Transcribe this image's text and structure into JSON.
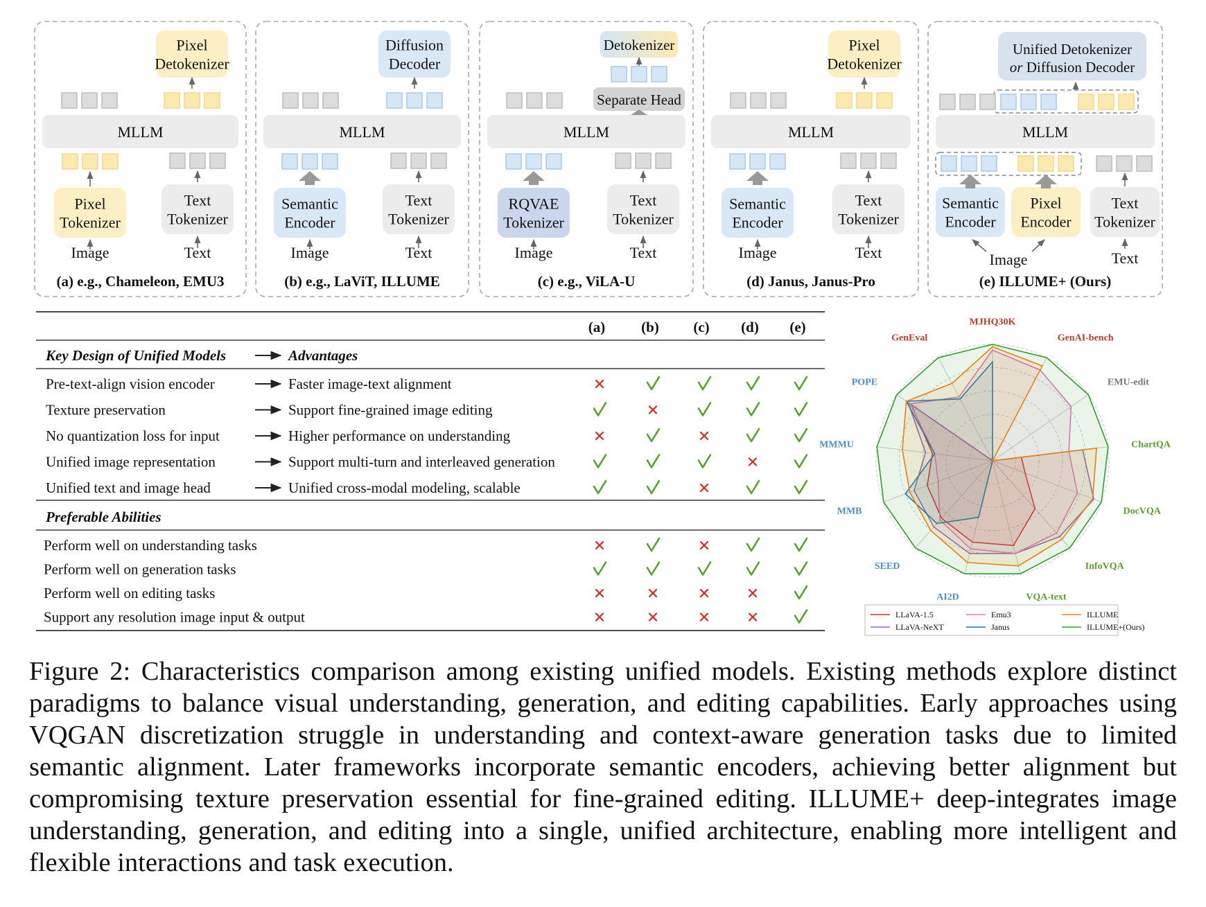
{
  "panels": [
    {
      "id": "a",
      "caption": "(a) e.g., Chameleon, EMU3",
      "top_box": "Pixel Detokenizer",
      "left_box": "Pixel Tokenizer",
      "left_input": "Image",
      "right_box": "Text Tokenizer",
      "right_input": "Text",
      "mllm": "MLLM"
    },
    {
      "id": "b",
      "caption": "(b) e.g., LaViT, ILLUME",
      "top_box": "Diffusion Decoder",
      "left_box": "Semantic Encoder",
      "left_input": "Image",
      "right_box": "Text Tokenizer",
      "right_input": "Text",
      "mllm": "MLLM"
    },
    {
      "id": "c",
      "caption": "(c) e.g., ViLA-U",
      "top_box": "Detokenizer",
      "head_box": "Separate Head",
      "left_box": "RQVAE Tokenizer",
      "left_input": "Image",
      "right_box": "Text Tokenizer",
      "right_input": "Text",
      "mllm": "MLLM"
    },
    {
      "id": "d",
      "caption": "(d) Janus, Janus-Pro",
      "top_box": "Pixel Detokenizer",
      "left_box": "Semantic Encoder",
      "left_input": "Image",
      "right_box": "Text Tokenizer",
      "right_input": "Text",
      "mllm": "MLLM"
    },
    {
      "id": "e",
      "caption": "(e) ILLUME+ (Ours)",
      "top_box_line1": "Unified Detokenizer",
      "top_box_or": "or",
      "top_box_line2": "Diffusion Decoder",
      "left_box": "Semantic Encoder",
      "mid_box": "Pixel Encoder",
      "left_input": "Image",
      "right_box": "Text Tokenizer",
      "right_input": "Text",
      "mllm": "MLLM"
    }
  ],
  "table": {
    "columns": [
      "(a)",
      "(b)",
      "(c)",
      "(d)",
      "(e)"
    ],
    "design_header": "Key Design of Unified Models",
    "advantages_header": "Advantages",
    "design_rows": [
      {
        "design": "Pre-text-align vision encoder",
        "advantage": "Faster image-text alignment",
        "marks": [
          "x",
          "v",
          "v",
          "v",
          "v"
        ]
      },
      {
        "design": "Texture preservation",
        "advantage": "Support fine-grained image editing",
        "marks": [
          "v",
          "x",
          "v",
          "v",
          "v"
        ]
      },
      {
        "design": "No quantization loss for input",
        "advantage": "Higher performance on understanding",
        "marks": [
          "x",
          "v",
          "x",
          "v",
          "v"
        ]
      },
      {
        "design": "Unified image representation",
        "advantage": "Support multi-turn and interleaved generation",
        "marks": [
          "v",
          "v",
          "v",
          "x",
          "v"
        ]
      },
      {
        "design": "Unified text and image head",
        "advantage": "Unified cross-modal modeling, scalable",
        "marks": [
          "v",
          "v",
          "x",
          "v",
          "v"
        ]
      }
    ],
    "abilities_header": "Preferable Abilities",
    "ability_rows": [
      {
        "ability": "Perform well on understanding tasks",
        "marks": [
          "x",
          "v",
          "x",
          "v",
          "v"
        ]
      },
      {
        "ability": "Perform well on generation tasks",
        "marks": [
          "v",
          "v",
          "v",
          "v",
          "v"
        ]
      },
      {
        "ability": "Perform well on editing tasks",
        "marks": [
          "x",
          "x",
          "x",
          "x",
          "v"
        ]
      },
      {
        "ability": "Support any resolution image input & output",
        "marks": [
          "x",
          "x",
          "x",
          "x",
          "v"
        ]
      }
    ],
    "check_color": "#5aa02c",
    "cross_color": "#d62728"
  },
  "chart_data": {
    "type": "radar",
    "rmax": 1.0,
    "axes": [
      {
        "label": "MJHQ30K",
        "color": "#c0392b"
      },
      {
        "label": "GenAI-bench",
        "color": "#c0392b"
      },
      {
        "label": "EMU-edit",
        "color": "#777777"
      },
      {
        "label": "ChartQA",
        "color": "#5aa02c"
      },
      {
        "label": "DocVQA",
        "color": "#5aa02c"
      },
      {
        "label": "InfoVQA",
        "color": "#5aa02c"
      },
      {
        "label": "VQA-text",
        "color": "#5aa02c"
      },
      {
        "label": "AI2D",
        "color": "#4a90c8"
      },
      {
        "label": "SEED",
        "color": "#4a90c8"
      },
      {
        "label": "MMB",
        "color": "#4a90c8"
      },
      {
        "label": "MMMU",
        "color": "#4a90c8"
      },
      {
        "label": "POPE",
        "color": "#4a90c8"
      },
      {
        "label": "GenEval",
        "color": "#c0392b"
      }
    ],
    "series": [
      {
        "name": "LLaVA-1.5",
        "color": "#d62728",
        "values": [
          0,
          0,
          0,
          0.25,
          0.3,
          0.55,
          0.75,
          0.72,
          0.66,
          0.6,
          0.52,
          0.85,
          0
        ]
      },
      {
        "name": "LLaVA-NeXT",
        "color": "#9467bd",
        "values": [
          0,
          0,
          0,
          0.78,
          0.93,
          0.87,
          0.82,
          0.82,
          0.76,
          0.72,
          0.58,
          0.88,
          0
        ]
      },
      {
        "name": "Emu3",
        "color": "#e377c2",
        "values": [
          0.95,
          0.88,
          0.82,
          0.66,
          0.78,
          0.83,
          0.82,
          0.78,
          0.68,
          0.5,
          0.5,
          0.86,
          0.62
        ]
      },
      {
        "name": "Janus",
        "color": "#1f77b4",
        "values": [
          0.85,
          0,
          0,
          0,
          0,
          0,
          0,
          0.5,
          0.72,
          0.8,
          0.5,
          0.9,
          0.6
        ]
      },
      {
        "name": "ILLUME",
        "color": "#ff7f0e",
        "values": [
          0.98,
          0.92,
          0,
          0.9,
          0.92,
          0.9,
          0.93,
          0.9,
          0.8,
          0.76,
          0.78,
          0.9,
          0.75
        ]
      },
      {
        "name": "ILLUME+(Ours)",
        "color": "#2ca02c",
        "values": [
          1.0,
          1.0,
          1.0,
          1.0,
          1.0,
          1.0,
          1.0,
          1.0,
          1.0,
          1.0,
          1.0,
          1.0,
          1.0
        ]
      }
    ],
    "legend_position": "bottom"
  },
  "caption": {
    "label": "Figure 2:",
    "text": "Characteristics comparison among existing unified models. Existing methods explore distinct paradigms to balance visual understanding, generation, and editing capabilities. Early approaches using VQGAN discretization struggle in understanding and context-aware generation tasks due to limited semantic alignment. Later frameworks incorporate semantic encoders, achieving better alignment but compromising texture preservation essential for fine-grained editing. ILLUME+ deep-integrates image understanding, generation, and editing into a single, unified architecture, enabling more intelligent and flexible interactions and task execution."
  },
  "colors": {
    "pixel_box": "#fcefc4",
    "semantic_box": "#d9e8f7",
    "gray_box": "#ececec",
    "pixel_token": "#fce9b0",
    "semantic_token": "#d5e6f7",
    "gray_token": "#dcdcdc"
  }
}
